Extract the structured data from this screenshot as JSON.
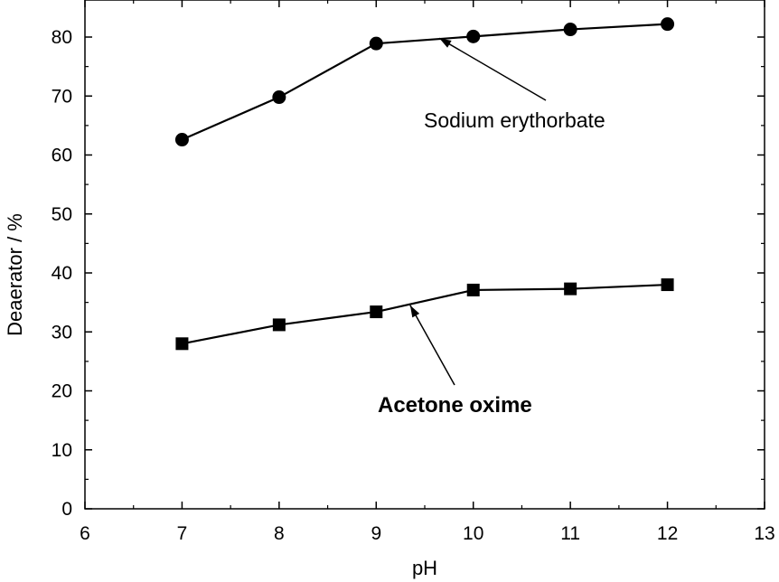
{
  "chart_data": {
    "type": "line",
    "xlabel": "pH",
    "ylabel": "Deaerator / %",
    "xlim": [
      6,
      13
    ],
    "ylim": [
      0,
      85
    ],
    "x_ticks": [
      6,
      7,
      8,
      9,
      10,
      11,
      12,
      13
    ],
    "y_ticks": [
      0,
      10,
      20,
      30,
      40,
      50,
      60,
      70,
      80
    ],
    "grid": false,
    "x": [
      7,
      8,
      9,
      10,
      11,
      12
    ],
    "series": [
      {
        "name": "Sodium erythorbate",
        "marker": "circle",
        "values": [
          62.6,
          69.8,
          78.9,
          80.1,
          81.3,
          82.2
        ]
      },
      {
        "name": "Acetone oxime",
        "marker": "square",
        "values": [
          28.0,
          31.2,
          33.4,
          37.1,
          37.3,
          38.0
        ]
      }
    ],
    "annotations": [
      {
        "text": "Sodium erythorbate",
        "style": "normal",
        "arrow_to": {
          "x": 9.65,
          "y": 79.8
        }
      },
      {
        "text": "Acetone oxime",
        "style": "bold",
        "arrow_to": {
          "x": 9.35,
          "y": 34.5
        }
      }
    ]
  }
}
